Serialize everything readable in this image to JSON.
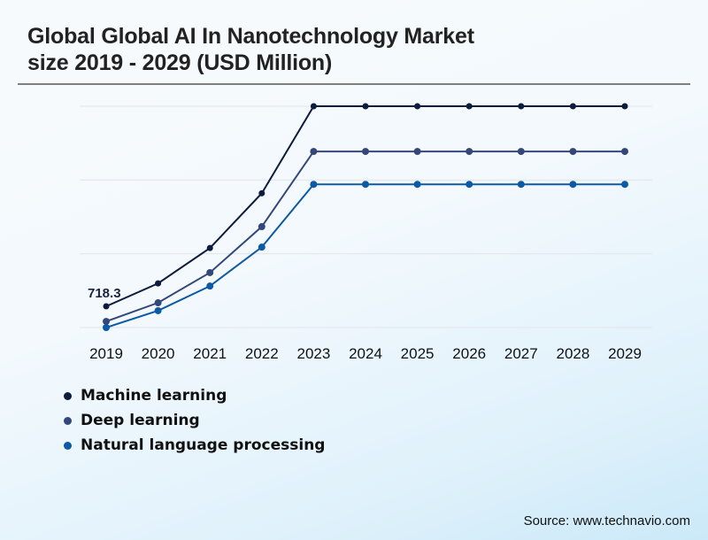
{
  "chart_data": {
    "type": "line",
    "title": "Global Global AI In Nanotechnology Market size 2019 - 2029 (USD Million)",
    "title_lines": [
      "Global Global AI In Nanotechnology Market",
      "size 2019 - 2029 (USD Million)"
    ],
    "xlabel": "",
    "ylabel": "",
    "x": [
      "2019",
      "2020",
      "2021",
      "2022",
      "2023",
      "2024",
      "2025",
      "2026",
      "2027",
      "2028",
      "2029"
    ],
    "ylim": [
      600,
      1833
    ],
    "gridlines": [
      600,
      1011,
      1422,
      1833
    ],
    "grid": true,
    "y_tick_labels_visible": false,
    "series": [
      {
        "name": "Machine learning",
        "color": "#0d1b3e",
        "values": [
          718.3,
          846,
          1043,
          1348,
          1833,
          1833,
          1833,
          1833,
          1833,
          1833,
          1833
        ]
      },
      {
        "name": "Deep learning",
        "color": "#34477a",
        "values": [
          634,
          738,
          906,
          1162,
          1581,
          1581,
          1581,
          1581,
          1581,
          1581,
          1581
        ]
      },
      {
        "name": "Natural language processing",
        "color": "#0c5aa6",
        "values": [
          600,
          694,
          831,
          1048,
          1398,
          1398,
          1398,
          1398,
          1398,
          1398,
          1398
        ]
      }
    ],
    "annotations": [
      {
        "series": "Machine learning",
        "x": "2019",
        "text": "718.3"
      }
    ],
    "legend_position": "bottom-left"
  },
  "source": "Source: www.technavio.com"
}
